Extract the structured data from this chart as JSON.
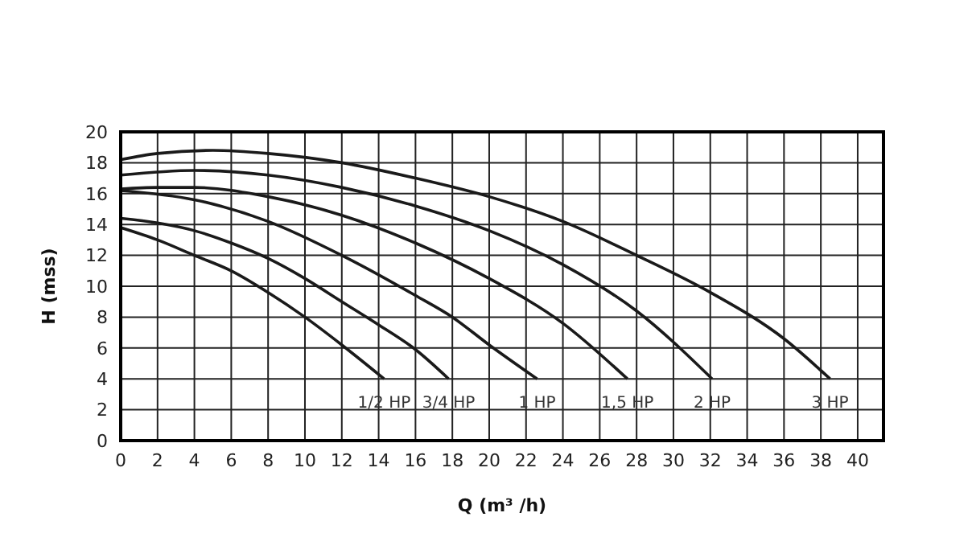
{
  "chart_data": {
    "type": "line",
    "xlabel": "Q (m³ /h)",
    "ylabel": "H (mss)",
    "xlim": [
      0,
      41.4
    ],
    "ylim": [
      0,
      20
    ],
    "xticks": [
      0,
      2,
      4,
      6,
      8,
      10,
      12,
      14,
      16,
      18,
      20,
      22,
      24,
      26,
      28,
      30,
      32,
      34,
      36,
      38,
      40
    ],
    "yticks": [
      0,
      2,
      4,
      6,
      8,
      10,
      12,
      14,
      16,
      18,
      20
    ],
    "grid": true,
    "legend": false,
    "marker": "none",
    "line_style": "solid",
    "series": [
      {
        "name": "1/2 HP",
        "color": "#1a1a1a",
        "x": [
          0,
          2,
          4,
          6,
          8,
          10,
          12,
          14.3
        ],
        "values": [
          13.8,
          13,
          12,
          11,
          9.6,
          8,
          6.2,
          4
        ]
      },
      {
        "name": "3/4 HP",
        "color": "#1a1a1a",
        "x": [
          0,
          2,
          4,
          6,
          8,
          10,
          12,
          14,
          16,
          17.8
        ],
        "values": [
          14.4,
          14.1,
          13.6,
          12.8,
          11.8,
          10.5,
          9,
          7.5,
          5.9,
          4
        ]
      },
      {
        "name": "1 HP",
        "color": "#1a1a1a",
        "x": [
          0,
          4,
          8,
          12,
          16,
          18,
          20,
          22.6
        ],
        "values": [
          16.2,
          15.6,
          14.2,
          12,
          9.4,
          8,
          6.2,
          4
        ]
      },
      {
        "name": "1,5 HP",
        "color": "#1a1a1a",
        "x": [
          0,
          2,
          4,
          8,
          12,
          16,
          20,
          24,
          27.5
        ],
        "values": [
          16.3,
          16.4,
          16.4,
          15.8,
          14.6,
          12.8,
          10.5,
          7.6,
          4
        ]
      },
      {
        "name": "2 HP",
        "color": "#1a1a1a",
        "x": [
          0,
          4,
          8,
          12,
          16,
          20,
          24,
          28,
          32.1
        ],
        "values": [
          17.2,
          17.5,
          17.2,
          16.4,
          15.2,
          13.6,
          11.4,
          8.4,
          4
        ]
      },
      {
        "name": "3 HP",
        "color": "#1a1a1a",
        "x": [
          0,
          2,
          5,
          8,
          12,
          16,
          20,
          24,
          28,
          32,
          36,
          38.5
        ],
        "values": [
          18.2,
          18.6,
          18.8,
          18.6,
          18,
          17,
          15.8,
          14.2,
          12,
          9.6,
          6.6,
          4
        ]
      }
    ]
  }
}
